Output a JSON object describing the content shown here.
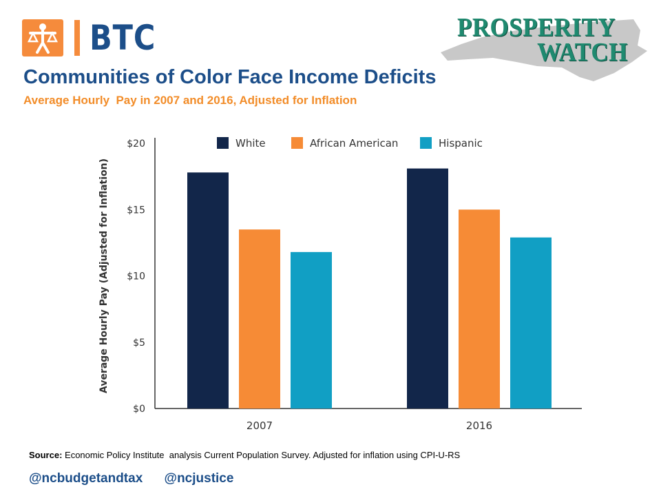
{
  "header": {
    "logo_text": "BTC",
    "logo_icon": "scales-of-justice-figure-icon",
    "partner_line1": "PROSPERITY",
    "partner_line2": "WATCH",
    "partner_shape": "north-carolina-map-silhouette",
    "title": "Communities of Color Face Income Deficits",
    "subtitle": "Average Hourly  Pay in 2007 and 2016, Adjusted for Inflation"
  },
  "chart_data": {
    "type": "bar",
    "categories": [
      "2007",
      "2016"
    ],
    "series": [
      {
        "name": "White",
        "values": [
          17.8,
          18.1
        ],
        "color": "#12264a"
      },
      {
        "name": "African American",
        "values": [
          13.5,
          15.0
        ],
        "color": "#f68b36"
      },
      {
        "name": "Hispanic",
        "values": [
          11.8,
          12.9
        ],
        "color": "#119fc4"
      }
    ],
    "ylabel": "Average Hourly Pay (Adjusted for Inflation)",
    "ylim": [
      0,
      20
    ],
    "yticks": [
      0,
      5,
      10,
      15,
      20
    ],
    "ytick_labels": [
      "$0",
      "$5",
      "$10",
      "$15",
      "$20"
    ],
    "legend_position": "top",
    "grid": false
  },
  "footer": {
    "source_label": "Source:",
    "source_text": " Economic Policy Institute  analysis Current Population Survey. Adjusted for inflation using CPI-U-RS",
    "handles": [
      "@ncbudgetandtax",
      "@ncjustice"
    ]
  }
}
